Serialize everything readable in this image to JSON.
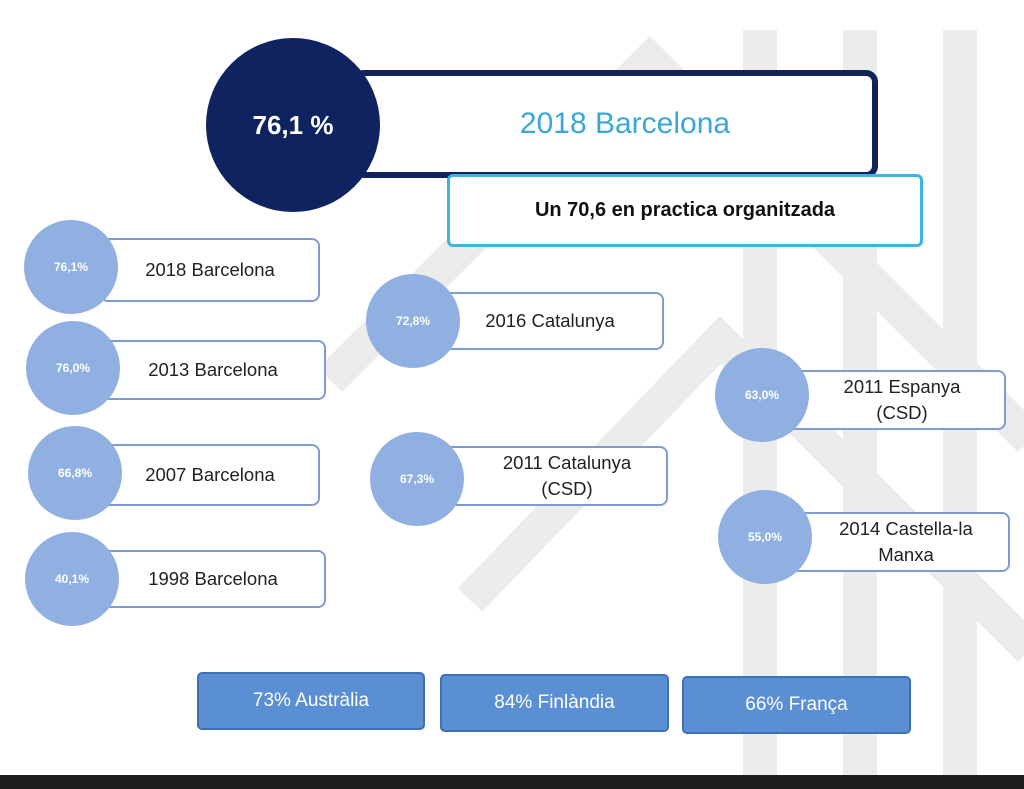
{
  "headline": {
    "percent": "76,1 %",
    "title": "2018 Barcelona",
    "subtitle": "Un 70,6 en practica organitzada"
  },
  "items": [
    {
      "percent": "76,1%",
      "label": "2018 Barcelona"
    },
    {
      "percent": "76,0%",
      "label": "2013 Barcelona"
    },
    {
      "percent": "66,8%",
      "label": "2007 Barcelona"
    },
    {
      "percent": "40,1%",
      "label": "1998 Barcelona"
    },
    {
      "percent": "72,8%",
      "label": "2016 Catalunya"
    },
    {
      "percent": "67,3%",
      "label": "2011 Catalunya (CSD)"
    },
    {
      "percent": "63,0%",
      "label": "2011 Espanya (CSD)"
    },
    {
      "percent": "55,0%",
      "label": "2014 Castella-la Manxa"
    }
  ],
  "countries": [
    {
      "label": "73% Austràlia"
    },
    {
      "label": "84% Finlàndia"
    },
    {
      "label": "66% França"
    }
  ],
  "colors": {
    "dark_navy": "#0f2360",
    "accent_cyan": "#3aa6d9",
    "light_blue_circle": "#8fb0e0",
    "country_blue": "#5b8fd4"
  }
}
